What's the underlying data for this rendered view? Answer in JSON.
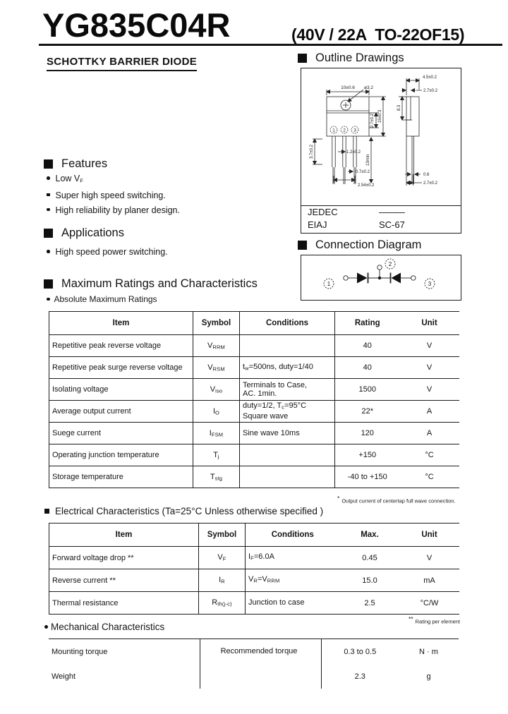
{
  "colors": {
    "paper": "#ffffff",
    "ink": "#141414"
  },
  "header": {
    "part_number": "YG835C04R",
    "spec": "(40V / 22A  TO-22OF15)",
    "subtitle": "SCHOTTKY BARRIER DIODE"
  },
  "features": {
    "title": "Features",
    "items": [
      {
        "bullet": "circle",
        "text": "Low V~F~"
      },
      {
        "bullet": "square",
        "text": "Super  high speed switching."
      },
      {
        "bullet": "circle",
        "text": "High reliability by planer design."
      }
    ]
  },
  "applications": {
    "title": "Applications",
    "items": [
      {
        "bullet": "circle",
        "text": "High speed power switching."
      }
    ]
  },
  "max_ratings_section": {
    "title": "Maximum Ratings and Characteristics",
    "subtitle": "Absolute Maximum Ratings"
  },
  "outline": {
    "title": "Outline  Drawings",
    "dims": [
      "10±0.6",
      "ø3.2",
      "2.7±0.2",
      "15±0.3",
      "3.7±0.2",
      "1.2±0.2",
      "13min",
      "0.7±0.2",
      "2.54±0.2",
      "4.5±0.2",
      "2.7±0.2",
      "8.3",
      "0.6",
      "2.7±0.2"
    ],
    "pins": [
      "1",
      "2",
      "3"
    ],
    "jedec_label": "JEDEC",
    "jedec_value": "———",
    "eiaj_label": "EIAJ",
    "eiaj_value": "SC-67"
  },
  "connection": {
    "title": "Connection Diagram"
  },
  "tables": {
    "max_ratings": {
      "headers": [
        "Item",
        "Symbol",
        "Conditions",
        "Rating",
        "Unit"
      ],
      "rows": [
        {
          "item": "Repetitive peak reverse voltage",
          "symbol": "V~RRM~",
          "conditions": "",
          "rating": "40",
          "unit": "V"
        },
        {
          "item": "Repetitive peak surge reverse voltage",
          "symbol": "V~RSM~",
          "conditions": "t~w~=500ns, duty=1/40",
          "rating": "40",
          "unit": "V"
        },
        {
          "item": "Isolating voltage",
          "symbol": "V~iso~",
          "conditions": "Terminals  to  Case,\nAC. 1min.",
          "rating": "1500",
          "unit": "V"
        },
        {
          "item": "Average output current",
          "symbol": "I~O~",
          "conditions": "duty=1/2, T~c~=95°C\nSquare  wave",
          "rating": "22*",
          "unit": "A"
        },
        {
          "item": "Suege current",
          "symbol": "I~FSM~",
          "conditions": "Sine  wave  10ms",
          "rating": "120",
          "unit": "A"
        },
        {
          "item": "Operating junction temperature",
          "symbol": "T~j~",
          "conditions": "",
          "rating": "+150",
          "unit": "°C"
        },
        {
          "item": "Storage temperature",
          "symbol": "T~stg~",
          "conditions": "",
          "rating": "-40  to +150",
          "unit": "°C"
        }
      ],
      "footnote_mark": "*",
      "footnote": "Output current of centertap full wave connection."
    },
    "electrical": {
      "title": "Electrical  Characteristics  (Ta=25°C  Unless  otherwise  specified )",
      "headers": [
        "Item",
        "Symbol",
        "Conditions",
        "Max.",
        "Unit"
      ],
      "rows": [
        {
          "item": "Forward voltage drop  **",
          "symbol": "V~F~",
          "conditions": "I~F~=6.0A",
          "max": "0.45",
          "unit": "V"
        },
        {
          "item": "Reverse current  **",
          "symbol": "I~R~",
          "conditions": "V~R~=V~RRM~",
          "max": "15.0",
          "unit": "mA"
        },
        {
          "item": "Thermal resistance",
          "symbol": "R~th(j-c)~",
          "conditions": "Junction to case",
          "max": "2.5",
          "unit": "°C/W"
        }
      ],
      "footnote_mark": "**",
      "footnote": "Rating per element"
    },
    "mechanical": {
      "title": "Mechanical  Characteristics",
      "rows": [
        {
          "item": "Mounting torque",
          "conditions": "Recommended torque",
          "value": "0.3  to  0.5",
          "unit": "N · m"
        },
        {
          "item": "Weight",
          "conditions": "",
          "value": "2.3",
          "unit": "g"
        }
      ]
    }
  }
}
